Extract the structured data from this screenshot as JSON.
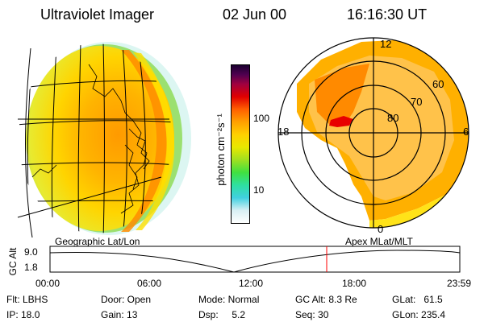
{
  "header": {
    "instrument": "Ultraviolet Imager",
    "date": "02 Jun 00",
    "time": "16:16:30 UT"
  },
  "colorbar": {
    "unit_label": "photon cm⁻²s⁻¹",
    "tick_labels": [
      "100",
      "10"
    ]
  },
  "left_panel": {
    "label": "Geographic Lat/Lon"
  },
  "right_panel": {
    "label": "Apex MLat/MLT",
    "mlt_labels": [
      "12",
      "18",
      "6",
      "0"
    ],
    "lat_labels": [
      "60",
      "70",
      "80"
    ]
  },
  "timeline": {
    "ylabel": "GC Alt",
    "y_ticks": [
      "9.0",
      "1.8"
    ],
    "x_ticks": [
      "00:00",
      "06:00",
      "12:00",
      "18:00",
      "23:59"
    ],
    "marker_time": "16:16",
    "marker_color": "#ff0000"
  },
  "info": {
    "flt": "Flt: LBHS",
    "ip": "IP: 18.0",
    "door": "Door: Open",
    "gain": "Gain: 13",
    "mode": "Mode: Normal",
    "dsp": "Dsp:     5.2",
    "gc_alt": "GC Alt: 8.3 Re",
    "seq": "Seq: 30",
    "glat": "GLat:   61.5",
    "glon": "GLon: 235.4"
  },
  "colors": {
    "aurora_core": "#ff7a00",
    "aurora_mid": "#ffb000",
    "aurora_outer": "#f2e600",
    "edge_green": "#7ad84a",
    "edge_cyan": "#40d0d8"
  }
}
